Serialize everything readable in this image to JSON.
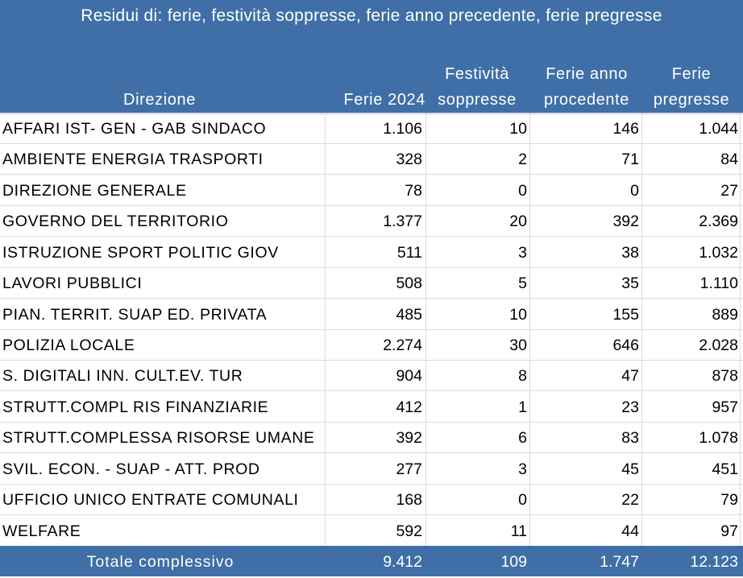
{
  "title": "Residui di: ferie, festività soppresse, ferie anno precedente, ferie pregresse",
  "headers": {
    "direzione": "Direzione",
    "ferie_2024": "Ferie 2024",
    "festivita_l1": "Festività",
    "festivita_l2": "soppresse",
    "ferie_anno_l1": "Ferie anno",
    "ferie_anno_l2": "procedente",
    "ferie_pregresse_l1": "Ferie",
    "ferie_pregresse_l2": "pregresse"
  },
  "rows": [
    {
      "direzione": "AFFARI IST- GEN - GAB SINDACO",
      "ferie_2024": "1.106",
      "festivita": "10",
      "ferie_anno": "146",
      "ferie_pregresse": "1.044"
    },
    {
      "direzione": "AMBIENTE ENERGIA TRASPORTI",
      "ferie_2024": "328",
      "festivita": "2",
      "ferie_anno": "71",
      "ferie_pregresse": "84"
    },
    {
      "direzione": "DIREZIONE GENERALE",
      "ferie_2024": "78",
      "festivita": "0",
      "ferie_anno": "0",
      "ferie_pregresse": "27"
    },
    {
      "direzione": "GOVERNO DEL TERRITORIO",
      "ferie_2024": "1.377",
      "festivita": "20",
      "ferie_anno": "392",
      "ferie_pregresse": "2.369"
    },
    {
      "direzione": "ISTRUZIONE  SPORT POLITIC GIOV",
      "ferie_2024": "511",
      "festivita": "3",
      "ferie_anno": "38",
      "ferie_pregresse": "1.032"
    },
    {
      "direzione": "LAVORI PUBBLICI",
      "ferie_2024": "508",
      "festivita": "5",
      "ferie_anno": "35",
      "ferie_pregresse": "1.110"
    },
    {
      "direzione": "PIAN. TERRIT. SUAP ED. PRIVATA",
      "ferie_2024": "485",
      "festivita": "10",
      "ferie_anno": "155",
      "ferie_pregresse": "889"
    },
    {
      "direzione": "POLIZIA LOCALE",
      "ferie_2024": "2.274",
      "festivita": "30",
      "ferie_anno": "646",
      "ferie_pregresse": "2.028"
    },
    {
      "direzione": "S. DIGITALI  INN. CULT.EV. TUR",
      "ferie_2024": "904",
      "festivita": "8",
      "ferie_anno": "47",
      "ferie_pregresse": "878"
    },
    {
      "direzione": "STRUTT.COMPL RIS FINANZIARIE",
      "ferie_2024": "412",
      "festivita": "1",
      "ferie_anno": "23",
      "ferie_pregresse": "957"
    },
    {
      "direzione": "STRUTT.COMPLESSA RISORSE UMANE",
      "ferie_2024": "392",
      "festivita": "6",
      "ferie_anno": "83",
      "ferie_pregresse": "1.078"
    },
    {
      "direzione": "SVIL. ECON. - SUAP - ATT. PROD",
      "ferie_2024": "277",
      "festivita": "3",
      "ferie_anno": "45",
      "ferie_pregresse": "451"
    },
    {
      "direzione": "UFFICIO UNICO ENTRATE COMUNALI",
      "ferie_2024": "168",
      "festivita": "0",
      "ferie_anno": "22",
      "ferie_pregresse": "79"
    },
    {
      "direzione": "WELFARE",
      "ferie_2024": "592",
      "festivita": "11",
      "ferie_anno": "44",
      "ferie_pregresse": "97"
    }
  ],
  "total": {
    "label": "Totale complessivo",
    "ferie_2024": "9.412",
    "festivita": "109",
    "ferie_anno": "1.747",
    "ferie_pregresse": "12.123"
  },
  "colors": {
    "header_band": "#3f6fa6",
    "grid_line": "#d9d9d9"
  }
}
